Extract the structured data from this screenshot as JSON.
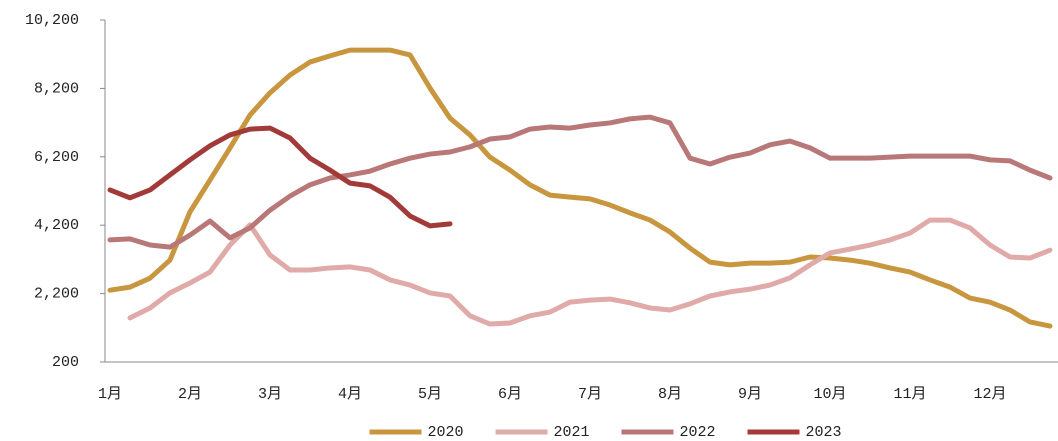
{
  "chart_data": {
    "type": "line",
    "categories": [
      "1月",
      null,
      null,
      null,
      "2月",
      null,
      null,
      null,
      "3月",
      null,
      null,
      null,
      "4月",
      null,
      null,
      null,
      "5月",
      null,
      null,
      null,
      "6月",
      null,
      null,
      null,
      "7月",
      null,
      null,
      null,
      "8月",
      null,
      null,
      null,
      "9月",
      null,
      null,
      null,
      "10月",
      null,
      null,
      null,
      "11月",
      null,
      null,
      null,
      "12月",
      null,
      null,
      null
    ],
    "ylim": [
      200,
      10200
    ],
    "yticks": [
      200,
      {
        "value": 2200,
        "label": "2,200"
      },
      {
        "value": 4200,
        "label": "4,200"
      },
      {
        "value": 6200,
        "label": "6,200"
      },
      {
        "value": 8200,
        "label": "8,200"
      },
      {
        "value": 10200,
        "label": "10,200"
      }
    ],
    "legend": "bottom",
    "series": [
      {
        "name": "2020",
        "color": "#c8963e",
        "values": [
          2300,
          2390,
          2650,
          3180,
          4590,
          5520,
          6460,
          7420,
          8070,
          8590,
          8970,
          9150,
          9320,
          9320,
          9320,
          9180,
          8210,
          7330,
          6840,
          6190,
          5810,
          5380,
          5080,
          5020,
          4970,
          4790,
          4560,
          4350,
          4000,
          3530,
          3120,
          3040,
          3090,
          3090,
          3120,
          3270,
          3240,
          3180,
          3090,
          2950,
          2830,
          2600,
          2390,
          2070,
          1950,
          1720,
          1370,
          1250
        ]
      },
      {
        "name": "2021",
        "color": "#e0aaa8",
        "values": [
          null,
          1490,
          1780,
          2220,
          2510,
          2830,
          3620,
          4210,
          3330,
          2890,
          2890,
          2950,
          2980,
          2890,
          2600,
          2450,
          2220,
          2130,
          1550,
          1310,
          1340,
          1550,
          1660,
          1950,
          2010,
          2040,
          1930,
          1780,
          1720,
          1900,
          2130,
          2250,
          2330,
          2450,
          2660,
          3040,
          3390,
          3500,
          3620,
          3770,
          3970,
          4350,
          4350,
          4120,
          3620,
          3270,
          3240,
          3470
        ]
      },
      {
        "name": "2022",
        "color": "#b87878",
        "values": [
          3770,
          3800,
          3620,
          3560,
          3910,
          4320,
          3830,
          4120,
          4640,
          5050,
          5380,
          5580,
          5670,
          5780,
          5990,
          6160,
          6280,
          6340,
          6490,
          6720,
          6780,
          7010,
          7070,
          7040,
          7130,
          7190,
          7310,
          7360,
          7190,
          6160,
          5990,
          6190,
          6310,
          6550,
          6660,
          6460,
          6160,
          6160,
          6160,
          6190,
          6220,
          6220,
          6220,
          6220,
          6110,
          6080,
          5810,
          5580
        ]
      },
      {
        "name": "2023",
        "color": "#a33a3a",
        "values": [
          5230,
          5000,
          5230,
          5670,
          6110,
          6520,
          6840,
          7010,
          7040,
          6750,
          6160,
          5810,
          5430,
          5350,
          5020,
          4470,
          4180,
          4240,
          null,
          null,
          null,
          null,
          null,
          null,
          null,
          null,
          null,
          null,
          null,
          null,
          null,
          null,
          null,
          null,
          null,
          null,
          null,
          null,
          null,
          null,
          null,
          null,
          null,
          null,
          null,
          null,
          null,
          null
        ]
      }
    ]
  }
}
